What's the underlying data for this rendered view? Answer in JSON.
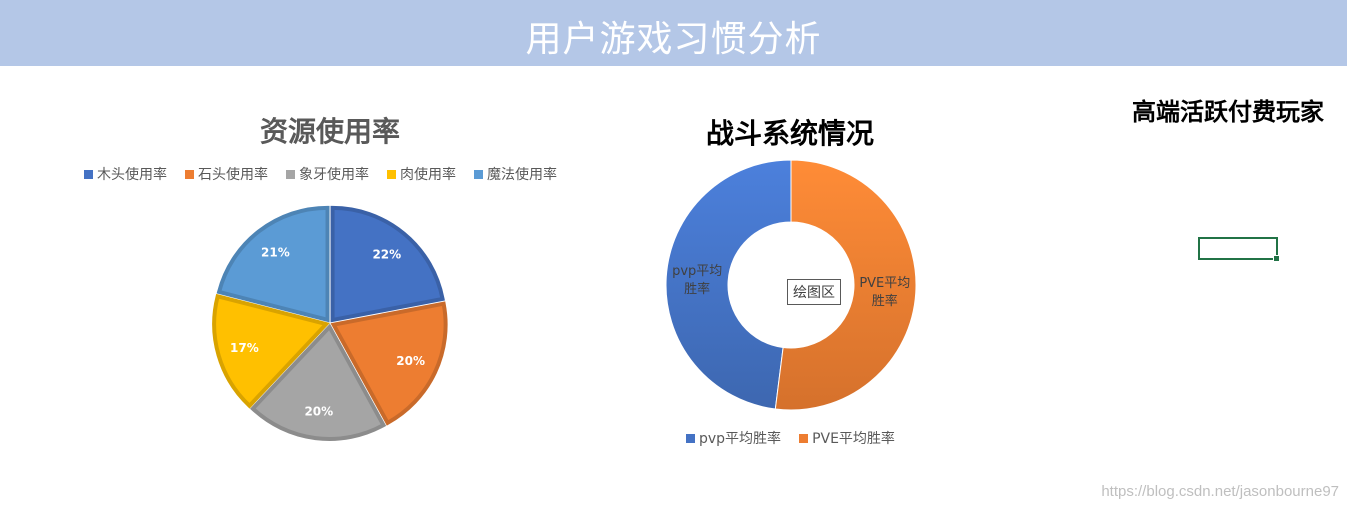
{
  "banner": {
    "title": "用户游戏习惯分析"
  },
  "plot_area_label": "绘图区",
  "high_end_title": "高端活跃付费玩家",
  "watermark": "https://blog.csdn.net/jasonbourne97",
  "chart_data": [
    {
      "type": "pie",
      "title": "资源使用率",
      "categories": [
        "木头使用率",
        "石头使用率",
        "象牙使用率",
        "肉使用率",
        "魔法使用率"
      ],
      "values": [
        22,
        20,
        20,
        17,
        21
      ],
      "value_labels": [
        "22%",
        "20%",
        "20%",
        "17%",
        "21%"
      ],
      "colors": [
        "#4472c4",
        "#ed7d31",
        "#a5a5a5",
        "#ffc000",
        "#5b9bd5"
      ],
      "legend_position": "top"
    },
    {
      "type": "pie",
      "subtype": "doughnut",
      "title": "战斗系统情况",
      "categories": [
        "pvp平均胜率",
        "PVE平均胜率"
      ],
      "values": [
        48,
        52
      ],
      "slice_labels": [
        "pvp平均胜率",
        "PVE平均胜率"
      ],
      "colors": [
        "#4472c4",
        "#ed7d31"
      ],
      "legend_position": "bottom"
    }
  ]
}
